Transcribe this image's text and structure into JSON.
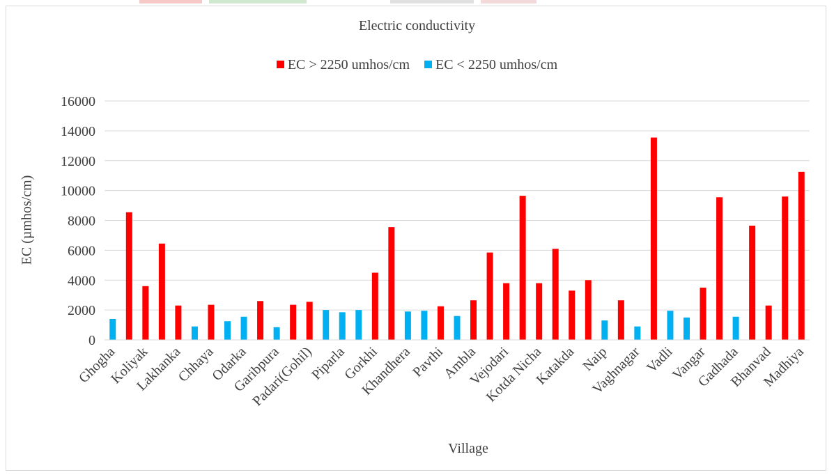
{
  "chart_data": {
    "type": "bar",
    "title": "Electric conductivity",
    "xlabel": "Village",
    "ylabel": "EC (µmhos/cm)",
    "ylim": [
      0,
      16000
    ],
    "yticks": [
      0,
      2000,
      4000,
      6000,
      8000,
      10000,
      12000,
      14000,
      16000
    ],
    "grid": true,
    "legend_position": "top",
    "series": [
      {
        "name": "EC > 2250 umhos/cm",
        "color": "#ff0000"
      },
      {
        "name": "EC < 2250 umhos/cm",
        "color": "#00b0f0"
      }
    ],
    "bars": [
      {
        "value": 1400,
        "series": 1
      },
      {
        "value": 8550,
        "series": 0
      },
      {
        "value": 3600,
        "series": 0
      },
      {
        "value": 6450,
        "series": 0
      },
      {
        "value": 2300,
        "series": 0
      },
      {
        "value": 900,
        "series": 1
      },
      {
        "value": 2350,
        "series": 0
      },
      {
        "value": 1250,
        "series": 1
      },
      {
        "value": 1550,
        "series": 1
      },
      {
        "value": 2600,
        "series": 0
      },
      {
        "value": 850,
        "series": 1
      },
      {
        "value": 2350,
        "series": 0
      },
      {
        "value": 2550,
        "series": 0
      },
      {
        "value": 2000,
        "series": 1
      },
      {
        "value": 1850,
        "series": 1
      },
      {
        "value": 2000,
        "series": 1
      },
      {
        "value": 4500,
        "series": 0
      },
      {
        "value": 7550,
        "series": 0
      },
      {
        "value": 1900,
        "series": 1
      },
      {
        "value": 1950,
        "series": 1
      },
      {
        "value": 2250,
        "series": 0
      },
      {
        "value": 1600,
        "series": 1
      },
      {
        "value": 2650,
        "series": 0
      },
      {
        "value": 5850,
        "series": 0
      },
      {
        "value": 3800,
        "series": 0
      },
      {
        "value": 9650,
        "series": 0
      },
      {
        "value": 3800,
        "series": 0
      },
      {
        "value": 6100,
        "series": 0
      },
      {
        "value": 3300,
        "series": 0
      },
      {
        "value": 4000,
        "series": 0
      },
      {
        "value": 1300,
        "series": 1
      },
      {
        "value": 2650,
        "series": 0
      },
      {
        "value": 900,
        "series": 1
      },
      {
        "value": 13550,
        "series": 0
      },
      {
        "value": 1950,
        "series": 1
      },
      {
        "value": 1500,
        "series": 1
      },
      {
        "value": 3500,
        "series": 0
      },
      {
        "value": 9550,
        "series": 0
      },
      {
        "value": 1550,
        "series": 1
      },
      {
        "value": 7650,
        "series": 0
      },
      {
        "value": 2300,
        "series": 0
      },
      {
        "value": 9600,
        "series": 0
      },
      {
        "value": 11250,
        "series": 0
      }
    ],
    "category_labels": [
      {
        "label": "Ghogha",
        "bar_index": 0
      },
      {
        "label": "Koliyak",
        "bar_index": 2
      },
      {
        "label": "Lakhanka",
        "bar_index": 4
      },
      {
        "label": "Chhaya",
        "bar_index": 6
      },
      {
        "label": "Odarka",
        "bar_index": 8
      },
      {
        "label": "Garibpura",
        "bar_index": 10
      },
      {
        "label": "Padari(Gohil)",
        "bar_index": 12
      },
      {
        "label": "Piparla",
        "bar_index": 14
      },
      {
        "label": "Gorkhi",
        "bar_index": 16
      },
      {
        "label": "Khandhera",
        "bar_index": 18
      },
      {
        "label": "Pavthi",
        "bar_index": 20
      },
      {
        "label": "Ambla",
        "bar_index": 22
      },
      {
        "label": "Vejodari",
        "bar_index": 24
      },
      {
        "label": "Kotda Nicha",
        "bar_index": 26
      },
      {
        "label": "Katakda",
        "bar_index": 28
      },
      {
        "label": "Naip",
        "bar_index": 30
      },
      {
        "label": "Vaghnagar",
        "bar_index": 32
      },
      {
        "label": "Vadli",
        "bar_index": 34
      },
      {
        "label": "Vangar",
        "bar_index": 36
      },
      {
        "label": "Gadhada",
        "bar_index": 38
      },
      {
        "label": "Bhanvad",
        "bar_index": 40
      },
      {
        "label": "Madhiya",
        "bar_index": 42
      }
    ]
  }
}
